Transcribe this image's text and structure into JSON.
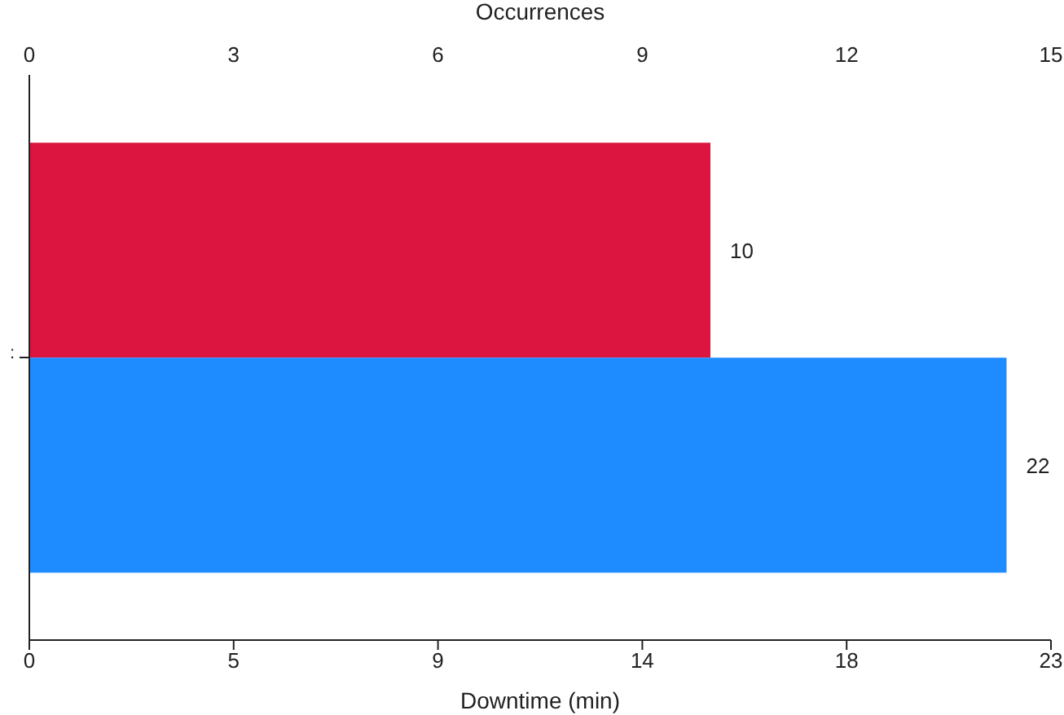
{
  "chart_data": {
    "type": "bar",
    "orientation": "horizontal",
    "categories": [
      null
    ],
    "series": [
      {
        "color": "#dc1440",
        "values": [
          10
        ],
        "axis": "x2"
      },
      {
        "color": "#1e8cff",
        "values": [
          22
        ]
      }
    ],
    "xlabel": "Downtime (min)",
    "x2label": "Occurrences",
    "xlim": [
      0,
      23
    ],
    "xticks": [
      0,
      {
        "value": 4.6,
        "label": "5"
      },
      {
        "value": 9.2,
        "label": "9"
      },
      {
        "value": 13.8,
        "label": "14"
      },
      {
        "value": 18.4,
        "label": "18"
      },
      23
    ],
    "x2lim": [
      0,
      15
    ],
    "x2ticks": [
      0,
      3,
      6,
      9,
      12,
      15
    ],
    "annotations": [
      ":"
    ],
    "data_labels": true,
    "grid": false,
    "legend": false
  }
}
